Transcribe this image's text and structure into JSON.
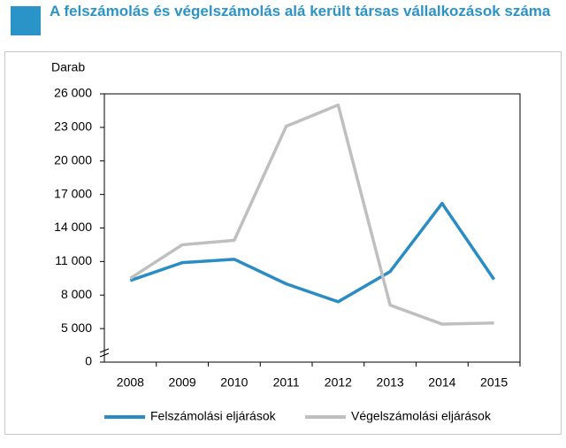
{
  "chart_data": {
    "type": "line",
    "title": "A felszámolás és végelszámolás alá került társas vállalkozások száma",
    "y_label": "Darab",
    "categories": [
      "2008",
      "2009",
      "2010",
      "2011",
      "2012",
      "2013",
      "2014",
      "2015"
    ],
    "series": [
      {
        "name": "Felszámolási eljárások",
        "color": "#2a8cc4",
        "values": [
          9300,
          10900,
          11200,
          9000,
          7400,
          10100,
          16200,
          9400
        ]
      },
      {
        "name": "Végelszámolási eljárások",
        "color": "#bfbfbf",
        "values": [
          9500,
          12500,
          12900,
          23100,
          25000,
          7100,
          5400,
          5500
        ]
      }
    ],
    "ylim": [
      0,
      26000
    ],
    "yticks": [
      0,
      {
        "value": 5000,
        "label": "5 000"
      },
      {
        "value": 8000,
        "label": "8 000"
      },
      {
        "value": 11000,
        "label": "11 000"
      },
      {
        "value": 14000,
        "label": "14 000"
      },
      {
        "value": 17000,
        "label": "17 000"
      },
      {
        "value": 20000,
        "label": "20 000"
      },
      {
        "value": 23000,
        "label": "23 000"
      },
      {
        "value": 26000,
        "label": "26 000"
      }
    ],
    "grid": false
  }
}
